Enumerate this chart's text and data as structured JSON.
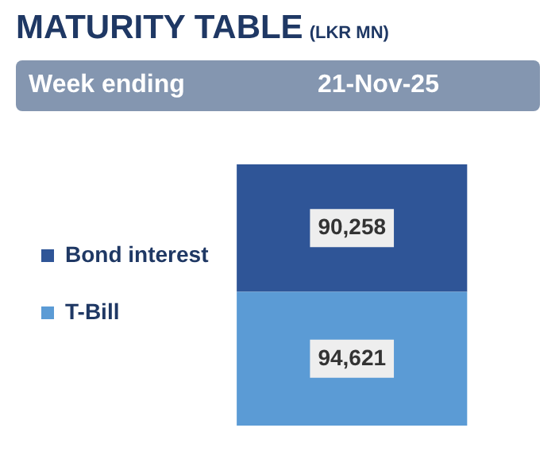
{
  "chart_data": {
    "type": "bar",
    "title": "MATURITY TABLE",
    "subtitle": "(LKR MN)",
    "annotations": [
      "Week ending",
      "21-Nov-25"
    ],
    "categories": [
      null
    ],
    "stacked": true,
    "legend": "left",
    "series": [
      {
        "name": "T-Bill",
        "color": "#5b9bd5",
        "values": [
          94621
        ],
        "value_labels": [
          "94,621"
        ]
      },
      {
        "name": "Bond interest",
        "color": "#2f5597",
        "values": [
          90258
        ],
        "value_labels": [
          "90,258"
        ]
      }
    ]
  }
}
